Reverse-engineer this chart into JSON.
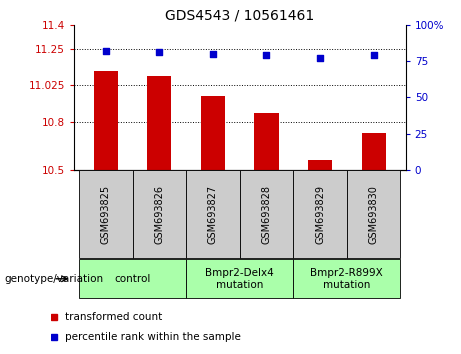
{
  "title": "GDS4543 / 10561461",
  "samples": [
    "GSM693825",
    "GSM693826",
    "GSM693827",
    "GSM693828",
    "GSM693829",
    "GSM693830"
  ],
  "bar_values": [
    11.112,
    11.083,
    10.958,
    10.852,
    10.563,
    10.732
  ],
  "bar_baseline": 10.5,
  "dot_values": [
    82,
    81,
    80,
    79,
    77,
    79
  ],
  "bar_color": "#cc0000",
  "dot_color": "#0000cc",
  "ylim_left": [
    10.5,
    11.4
  ],
  "ylim_right": [
    0,
    100
  ],
  "yticks_left": [
    10.5,
    10.8,
    11.025,
    11.25,
    11.4
  ],
  "ytick_labels_left": [
    "10.5",
    "10.8",
    "11.025",
    "11.25",
    "11.4"
  ],
  "yticks_right": [
    0,
    25,
    50,
    75,
    100
  ],
  "ytick_labels_right": [
    "0",
    "25",
    "50",
    "75",
    "100%"
  ],
  "grid_values": [
    10.8,
    11.025,
    11.25
  ],
  "groups": [
    {
      "label": "control",
      "start": 0,
      "end": 1,
      "multiline": false
    },
    {
      "label": "Bmpr2-Delx4\nmutation",
      "start": 2,
      "end": 3,
      "multiline": true
    },
    {
      "label": "Bmpr2-R899X\nmutation",
      "start": 4,
      "end": 5,
      "multiline": true
    }
  ],
  "group_color": "#aaffaa",
  "tick_bg_color": "#cccccc",
  "legend_items": [
    {
      "label": "transformed count",
      "color": "#cc0000"
    },
    {
      "label": "percentile rank within the sample",
      "color": "#0000cc"
    }
  ],
  "genotype_label": "genotype/variation"
}
